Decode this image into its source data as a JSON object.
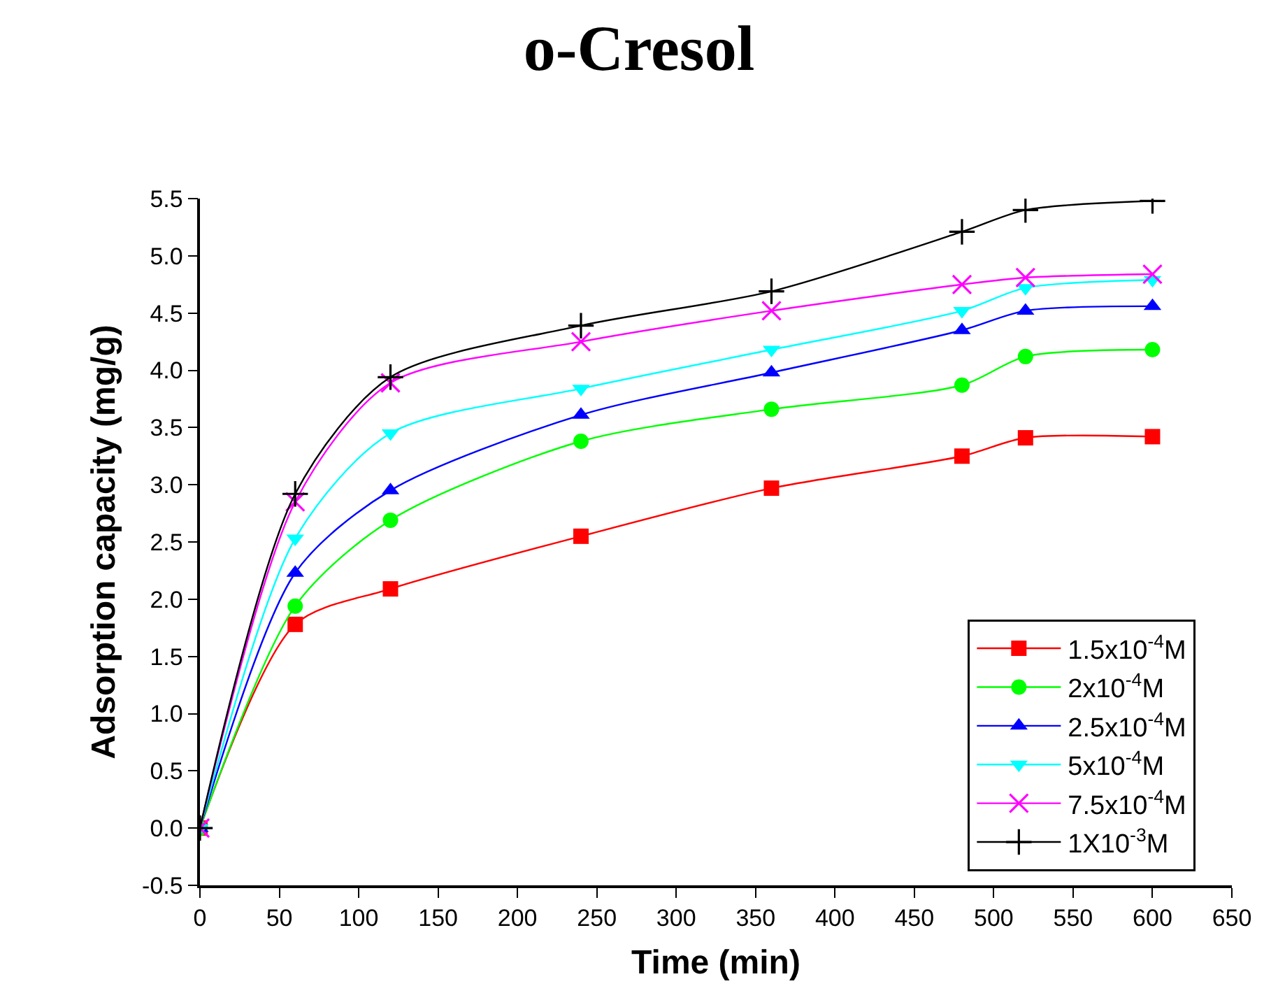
{
  "chart_data": {
    "type": "line",
    "title": "o-Cresol",
    "xlabel": "Time (min)",
    "ylabel": "Adsorption capacity (mg/g)",
    "x": [
      0,
      60,
      120,
      240,
      360,
      480,
      520,
      600
    ],
    "xlim": [
      0,
      650
    ],
    "xticks": [
      0,
      50,
      100,
      150,
      200,
      250,
      300,
      350,
      400,
      450,
      500,
      550,
      600,
      650
    ],
    "ylim": [
      -0.5,
      5.5
    ],
    "yticks": [
      -0.5,
      {
        "value": 0,
        "label": "0.0"
      },
      0.5,
      {
        "value": 1,
        "label": "1.0"
      },
      1.5,
      {
        "value": 2,
        "label": "2.0"
      },
      2.5,
      {
        "value": 3,
        "label": "3.0"
      },
      3.5,
      {
        "value": 4,
        "label": "4.0"
      },
      4.5,
      {
        "value": 5,
        "label": "5.0"
      },
      5.5
    ],
    "grid": false,
    "legend": "bottom right",
    "line_style": "solid",
    "series": [
      {
        "name": "1.5x10$^{-4}$M",
        "color": "#ff0000",
        "marker": "square",
        "values": [
          0,
          1.78,
          2.09,
          2.55,
          2.97,
          3.25,
          3.41,
          3.42
        ]
      },
      {
        "name": "2x10$^{-4}$M",
        "color": "#00ff00",
        "marker": "circle",
        "values": [
          0,
          1.94,
          2.69,
          3.38,
          3.66,
          3.87,
          4.12,
          4.18
        ]
      },
      {
        "name": "2.5x10$^{-4}$M",
        "color": "#0000ff",
        "marker": "triangle",
        "values": [
          0,
          2.23,
          2.95,
          3.61,
          3.98,
          4.35,
          4.52,
          4.56
        ]
      },
      {
        "name": "5x10$^{-4}$M",
        "color": "#00ffff",
        "marker": "triangle-down",
        "values": [
          0,
          2.53,
          3.45,
          3.84,
          4.18,
          4.52,
          4.72,
          4.79
        ]
      },
      {
        "name": "7.5x10$^{-4}$M",
        "color": "#ff00ff",
        "marker": "x",
        "values": [
          0,
          2.85,
          3.89,
          4.25,
          4.52,
          4.75,
          4.81,
          4.84
        ]
      },
      {
        "name": "1X10$^{-3}$M",
        "color": "#000000",
        "marker": "cross",
        "values": [
          0,
          2.92,
          3.94,
          4.39,
          4.69,
          5.21,
          5.4,
          5.48
        ]
      }
    ]
  }
}
